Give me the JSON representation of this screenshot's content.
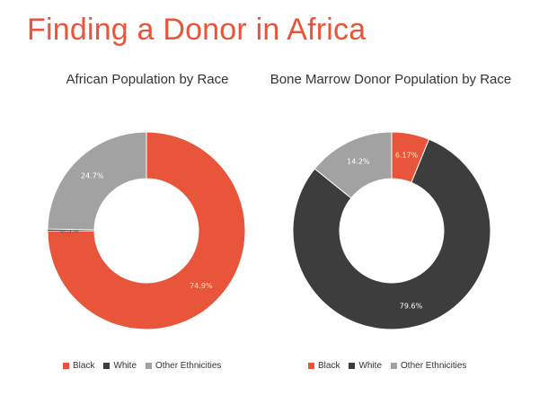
{
  "title": "Finding a Donor in Africa",
  "colors": {
    "black": "#e8553a",
    "white": "#3d3d3d",
    "other": "#a2a2a2",
    "title": "#e8553a"
  },
  "chart_data": [
    {
      "type": "pie",
      "title": "African Population by Race",
      "legend_position": "bottom",
      "slices": [
        {
          "name": "Black",
          "value": 74.9,
          "label": "74.9%"
        },
        {
          "name": "White",
          "value": 0.3,
          "label": "0.3%"
        },
        {
          "name": "Other Ethnicities",
          "value": 24.7,
          "label": "24.7%"
        }
      ]
    },
    {
      "type": "pie",
      "title": "Bone Marrow Donor Population by Race",
      "legend_position": "bottom",
      "slices": [
        {
          "name": "Black",
          "value": 6.17,
          "label": "6.17%"
        },
        {
          "name": "White",
          "value": 79.6,
          "label": "79.6%"
        },
        {
          "name": "Other Ethnicities",
          "value": 14.2,
          "label": "14.2%"
        }
      ]
    }
  ],
  "legend": {
    "items": [
      "Black",
      "White",
      "Other Ethnicities"
    ]
  }
}
